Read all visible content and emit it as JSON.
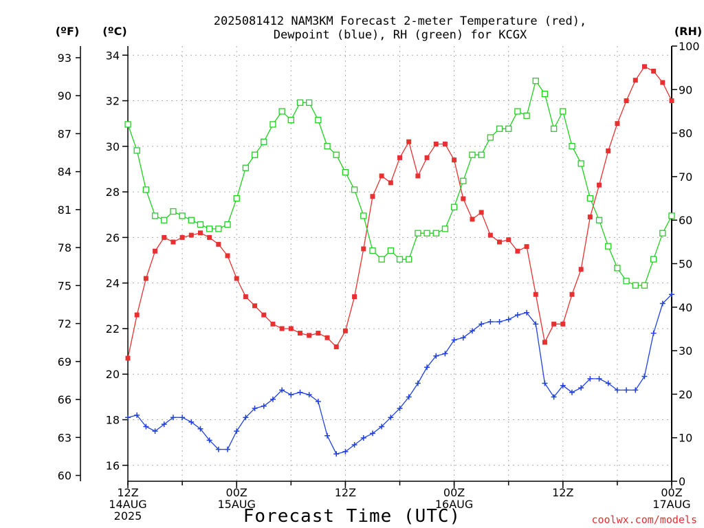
{
  "chart_data": {
    "type": "line",
    "title_line1": "2025081412 NAM3KM Forecast 2-meter Temperature (red),",
    "title_line2": "Dewpoint (blue), RH (green) for KCGX",
    "xlabel": "Forecast Time (UTC)",
    "credit": "coolwx.com/models",
    "units": {
      "f": "(ºF)",
      "c": "(ºC)",
      "rh": "(RH)"
    },
    "yleft_c": {
      "lim": [
        15.3,
        34.4
      ],
      "ticks": [
        16,
        18,
        20,
        22,
        24,
        26,
        28,
        30,
        32,
        34
      ]
    },
    "yleft_f": {
      "ticks": [
        60,
        63,
        66,
        69,
        72,
        75,
        78,
        81,
        84,
        87,
        90,
        93
      ]
    },
    "yright_rh": {
      "lim": [
        0,
        100
      ],
      "ticks": [
        0,
        10,
        20,
        30,
        40,
        50,
        60,
        70,
        80,
        90,
        100
      ]
    },
    "x": {
      "lim": [
        0,
        60
      ],
      "grid": true,
      "ticks": [
        {
          "h": 0,
          "lines": [
            "12Z",
            "14AUG",
            "2025"
          ]
        },
        {
          "h": 12,
          "lines": [
            "00Z",
            "15AUG"
          ]
        },
        {
          "h": 24,
          "lines": [
            "12Z"
          ]
        },
        {
          "h": 36,
          "lines": [
            "00Z",
            "16AUG"
          ]
        },
        {
          "h": 48,
          "lines": [
            "12Z"
          ]
        },
        {
          "h": 60,
          "lines": [
            "00Z",
            "17AUG"
          ]
        }
      ]
    },
    "colors": {
      "temp": "#e83030",
      "dew": "#2040e0",
      "rh": "#20d020"
    },
    "series": [
      {
        "name": "Temperature",
        "axis": "c",
        "marker": "filled-square",
        "values": [
          20.7,
          22.6,
          24.2,
          25.4,
          26.0,
          25.8,
          26.0,
          26.1,
          26.2,
          26.0,
          25.7,
          25.2,
          24.2,
          23.4,
          23.0,
          22.6,
          22.2,
          22.0,
          22.0,
          21.8,
          21.7,
          21.8,
          21.6,
          21.2,
          21.9,
          23.4,
          25.5,
          27.8,
          28.7,
          28.4,
          29.5,
          30.2,
          28.7,
          29.5,
          30.1,
          30.1,
          29.4,
          27.7,
          26.8,
          27.1,
          26.1,
          25.8,
          25.9,
          25.4,
          25.6,
          23.5,
          21.4,
          22.2,
          22.2,
          23.5,
          24.6,
          26.9,
          28.3,
          29.8,
          31.0,
          32.0,
          32.9,
          33.5,
          33.3,
          32.8,
          32.0
        ]
      },
      {
        "name": "Dewpoint",
        "axis": "c",
        "marker": "plus",
        "values": [
          18.1,
          18.2,
          17.7,
          17.5,
          17.8,
          18.1,
          18.1,
          17.9,
          17.6,
          17.1,
          16.7,
          16.7,
          17.5,
          18.1,
          18.5,
          18.6,
          18.9,
          19.3,
          19.1,
          19.2,
          19.1,
          18.8,
          17.3,
          16.5,
          16.6,
          16.9,
          17.2,
          17.4,
          17.7,
          18.1,
          18.5,
          19.0,
          19.6,
          20.3,
          20.8,
          20.9,
          21.5,
          21.6,
          21.9,
          22.2,
          22.3,
          22.3,
          22.4,
          22.6,
          22.7,
          22.2,
          19.6,
          19.0,
          19.5,
          19.2,
          19.4,
          19.8,
          19.8,
          19.6,
          19.3,
          19.3,
          19.3,
          19.9,
          21.8,
          23.1,
          23.5
        ]
      },
      {
        "name": "RH",
        "axis": "rh",
        "marker": "open-square",
        "values": [
          82,
          76,
          67,
          61,
          60,
          62,
          61,
          60,
          59,
          58,
          58,
          59,
          65,
          72,
          75,
          78,
          82,
          85,
          83,
          87,
          87,
          83,
          77,
          75,
          71,
          67,
          61,
          53,
          51,
          53,
          51,
          51,
          57,
          57,
          57,
          58,
          63,
          69,
          75,
          75,
          79,
          81,
          81,
          85,
          84,
          92,
          89,
          81,
          85,
          77,
          73,
          65,
          60,
          54,
          49,
          46,
          45,
          45,
          51,
          57,
          61
        ]
      }
    ]
  }
}
